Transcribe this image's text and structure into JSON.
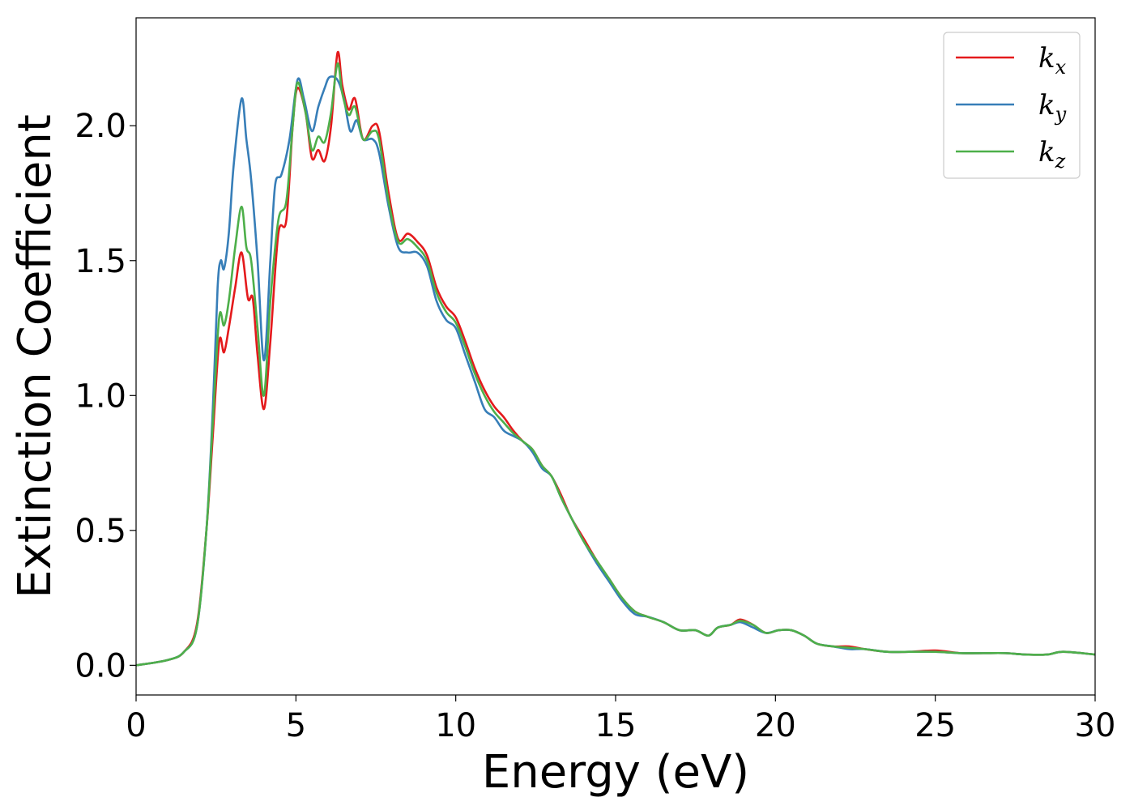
{
  "chart_data": {
    "type": "line",
    "xlabel": "Energy (eV)",
    "ylabel": "Extinction Coefficient",
    "xlim": [
      0,
      30
    ],
    "ylim": [
      -0.11,
      2.4
    ],
    "x_ticks": [
      "0",
      "5",
      "10",
      "15",
      "20",
      "25",
      "30"
    ],
    "y_ticks": [
      "0.0",
      "0.5",
      "1.0",
      "1.5",
      "2.0"
    ],
    "grid": false,
    "legend_position": "top-right",
    "colors": {
      "k_x": "#e41a1c",
      "k_y": "#377eb8",
      "k_z": "#4daf4a"
    },
    "series": [
      {
        "name": "k_x",
        "legend_base": "k",
        "legend_sub": "x",
        "color": "#e41a1c",
        "points": [
          [
            0,
            0.0
          ],
          [
            1.0,
            0.02
          ],
          [
            1.5,
            0.05
          ],
          [
            1.9,
            0.15
          ],
          [
            2.2,
            0.5
          ],
          [
            2.4,
            0.85
          ],
          [
            2.6,
            1.2
          ],
          [
            2.75,
            1.16
          ],
          [
            2.9,
            1.25
          ],
          [
            3.1,
            1.4
          ],
          [
            3.3,
            1.53
          ],
          [
            3.5,
            1.36
          ],
          [
            3.65,
            1.36
          ],
          [
            3.8,
            1.15
          ],
          [
            4.0,
            0.95
          ],
          [
            4.2,
            1.2
          ],
          [
            4.45,
            1.6
          ],
          [
            4.7,
            1.65
          ],
          [
            4.9,
            2.0
          ],
          [
            5.05,
            2.14
          ],
          [
            5.3,
            2.05
          ],
          [
            5.5,
            1.88
          ],
          [
            5.7,
            1.91
          ],
          [
            5.9,
            1.87
          ],
          [
            6.1,
            2.0
          ],
          [
            6.3,
            2.27
          ],
          [
            6.45,
            2.15
          ],
          [
            6.65,
            2.06
          ],
          [
            6.85,
            2.1
          ],
          [
            7.1,
            1.95
          ],
          [
            7.4,
            2.0
          ],
          [
            7.6,
            1.98
          ],
          [
            7.9,
            1.75
          ],
          [
            8.2,
            1.58
          ],
          [
            8.5,
            1.6
          ],
          [
            8.8,
            1.57
          ],
          [
            9.1,
            1.52
          ],
          [
            9.4,
            1.4
          ],
          [
            9.7,
            1.33
          ],
          [
            10.0,
            1.29
          ],
          [
            10.3,
            1.2
          ],
          [
            10.6,
            1.1
          ],
          [
            10.9,
            1.02
          ],
          [
            11.2,
            0.96
          ],
          [
            11.5,
            0.92
          ],
          [
            11.8,
            0.87
          ],
          [
            12.1,
            0.83
          ],
          [
            12.4,
            0.8
          ],
          [
            12.7,
            0.74
          ],
          [
            13.0,
            0.7
          ],
          [
            13.3,
            0.63
          ],
          [
            13.6,
            0.55
          ],
          [
            14.0,
            0.47
          ],
          [
            14.4,
            0.39
          ],
          [
            14.8,
            0.32
          ],
          [
            15.2,
            0.25
          ],
          [
            15.6,
            0.2
          ],
          [
            16.0,
            0.18
          ],
          [
            16.5,
            0.16
          ],
          [
            17.0,
            0.13
          ],
          [
            17.5,
            0.13
          ],
          [
            17.9,
            0.11
          ],
          [
            18.2,
            0.14
          ],
          [
            18.6,
            0.15
          ],
          [
            18.9,
            0.17
          ],
          [
            19.3,
            0.15
          ],
          [
            19.7,
            0.12
          ],
          [
            20.1,
            0.13
          ],
          [
            20.5,
            0.13
          ],
          [
            20.9,
            0.11
          ],
          [
            21.3,
            0.08
          ],
          [
            21.8,
            0.07
          ],
          [
            22.3,
            0.07
          ],
          [
            22.8,
            0.06
          ],
          [
            23.5,
            0.05
          ],
          [
            24.2,
            0.05
          ],
          [
            25.0,
            0.055
          ],
          [
            25.8,
            0.045
          ],
          [
            26.5,
            0.045
          ],
          [
            27.2,
            0.045
          ],
          [
            27.8,
            0.04
          ],
          [
            28.5,
            0.04
          ],
          [
            29.0,
            0.05
          ],
          [
            30.0,
            0.04
          ]
        ]
      },
      {
        "name": "k_y",
        "legend_base": "k",
        "legend_sub": "y",
        "color": "#377eb8",
        "points": [
          [
            0,
            0.0
          ],
          [
            1.0,
            0.02
          ],
          [
            1.5,
            0.05
          ],
          [
            1.9,
            0.14
          ],
          [
            2.2,
            0.5
          ],
          [
            2.4,
            0.95
          ],
          [
            2.55,
            1.4
          ],
          [
            2.65,
            1.5
          ],
          [
            2.75,
            1.47
          ],
          [
            2.9,
            1.6
          ],
          [
            3.05,
            1.85
          ],
          [
            3.3,
            2.1
          ],
          [
            3.45,
            1.95
          ],
          [
            3.6,
            1.8
          ],
          [
            3.8,
            1.5
          ],
          [
            4.0,
            1.13
          ],
          [
            4.2,
            1.5
          ],
          [
            4.35,
            1.78
          ],
          [
            4.55,
            1.82
          ],
          [
            4.8,
            1.95
          ],
          [
            5.05,
            2.17
          ],
          [
            5.25,
            2.1
          ],
          [
            5.5,
            1.98
          ],
          [
            5.7,
            2.07
          ],
          [
            5.9,
            2.14
          ],
          [
            6.05,
            2.18
          ],
          [
            6.3,
            2.17
          ],
          [
            6.5,
            2.1
          ],
          [
            6.7,
            1.98
          ],
          [
            6.9,
            2.02
          ],
          [
            7.1,
            1.95
          ],
          [
            7.4,
            1.95
          ],
          [
            7.6,
            1.9
          ],
          [
            7.9,
            1.7
          ],
          [
            8.2,
            1.55
          ],
          [
            8.5,
            1.53
          ],
          [
            8.8,
            1.53
          ],
          [
            9.1,
            1.48
          ],
          [
            9.4,
            1.35
          ],
          [
            9.7,
            1.28
          ],
          [
            10.0,
            1.25
          ],
          [
            10.3,
            1.15
          ],
          [
            10.6,
            1.05
          ],
          [
            10.9,
            0.95
          ],
          [
            11.2,
            0.92
          ],
          [
            11.5,
            0.87
          ],
          [
            11.8,
            0.85
          ],
          [
            12.1,
            0.83
          ],
          [
            12.4,
            0.79
          ],
          [
            12.7,
            0.73
          ],
          [
            13.0,
            0.7
          ],
          [
            13.3,
            0.62
          ],
          [
            13.6,
            0.55
          ],
          [
            14.0,
            0.46
          ],
          [
            14.4,
            0.38
          ],
          [
            14.8,
            0.31
          ],
          [
            15.2,
            0.24
          ],
          [
            15.6,
            0.19
          ],
          [
            16.0,
            0.18
          ],
          [
            16.5,
            0.16
          ],
          [
            17.0,
            0.13
          ],
          [
            17.5,
            0.13
          ],
          [
            17.9,
            0.11
          ],
          [
            18.2,
            0.14
          ],
          [
            18.6,
            0.15
          ],
          [
            18.9,
            0.16
          ],
          [
            19.3,
            0.14
          ],
          [
            19.7,
            0.12
          ],
          [
            20.1,
            0.13
          ],
          [
            20.5,
            0.13
          ],
          [
            20.9,
            0.11
          ],
          [
            21.3,
            0.08
          ],
          [
            21.8,
            0.07
          ],
          [
            22.3,
            0.06
          ],
          [
            22.8,
            0.06
          ],
          [
            23.5,
            0.05
          ],
          [
            24.2,
            0.05
          ],
          [
            25.0,
            0.05
          ],
          [
            25.8,
            0.045
          ],
          [
            26.5,
            0.045
          ],
          [
            27.2,
            0.045
          ],
          [
            27.8,
            0.04
          ],
          [
            28.5,
            0.04
          ],
          [
            29.0,
            0.05
          ],
          [
            30.0,
            0.04
          ]
        ]
      },
      {
        "name": "k_z",
        "legend_base": "k",
        "legend_sub": "z",
        "color": "#4daf4a",
        "points": [
          [
            0,
            0.0
          ],
          [
            1.0,
            0.02
          ],
          [
            1.5,
            0.05
          ],
          [
            1.9,
            0.14
          ],
          [
            2.2,
            0.5
          ],
          [
            2.4,
            0.9
          ],
          [
            2.6,
            1.29
          ],
          [
            2.75,
            1.26
          ],
          [
            2.9,
            1.35
          ],
          [
            3.1,
            1.55
          ],
          [
            3.3,
            1.7
          ],
          [
            3.45,
            1.55
          ],
          [
            3.6,
            1.5
          ],
          [
            3.8,
            1.25
          ],
          [
            4.0,
            1.0
          ],
          [
            4.2,
            1.35
          ],
          [
            4.45,
            1.65
          ],
          [
            4.7,
            1.72
          ],
          [
            4.9,
            2.0
          ],
          [
            5.05,
            2.16
          ],
          [
            5.3,
            2.05
          ],
          [
            5.5,
            1.91
          ],
          [
            5.7,
            1.96
          ],
          [
            5.9,
            1.94
          ],
          [
            6.1,
            2.05
          ],
          [
            6.3,
            2.23
          ],
          [
            6.45,
            2.12
          ],
          [
            6.65,
            2.04
          ],
          [
            6.85,
            2.07
          ],
          [
            7.1,
            1.95
          ],
          [
            7.4,
            1.98
          ],
          [
            7.6,
            1.95
          ],
          [
            7.9,
            1.72
          ],
          [
            8.2,
            1.57
          ],
          [
            8.5,
            1.58
          ],
          [
            8.8,
            1.55
          ],
          [
            9.1,
            1.5
          ],
          [
            9.4,
            1.38
          ],
          [
            9.7,
            1.31
          ],
          [
            10.0,
            1.27
          ],
          [
            10.3,
            1.18
          ],
          [
            10.6,
            1.08
          ],
          [
            10.9,
            1.0
          ],
          [
            11.2,
            0.94
          ],
          [
            11.5,
            0.9
          ],
          [
            11.8,
            0.86
          ],
          [
            12.1,
            0.83
          ],
          [
            12.4,
            0.8
          ],
          [
            12.7,
            0.74
          ],
          [
            13.0,
            0.7
          ],
          [
            13.3,
            0.62
          ],
          [
            13.6,
            0.55
          ],
          [
            14.0,
            0.46
          ],
          [
            14.4,
            0.39
          ],
          [
            14.8,
            0.32
          ],
          [
            15.2,
            0.25
          ],
          [
            15.6,
            0.2
          ],
          [
            16.0,
            0.18
          ],
          [
            16.5,
            0.16
          ],
          [
            17.0,
            0.13
          ],
          [
            17.5,
            0.13
          ],
          [
            17.9,
            0.11
          ],
          [
            18.2,
            0.14
          ],
          [
            18.6,
            0.15
          ],
          [
            18.9,
            0.165
          ],
          [
            19.3,
            0.15
          ],
          [
            19.7,
            0.12
          ],
          [
            20.1,
            0.13
          ],
          [
            20.5,
            0.13
          ],
          [
            20.9,
            0.11
          ],
          [
            21.3,
            0.08
          ],
          [
            21.8,
            0.07
          ],
          [
            22.3,
            0.065
          ],
          [
            22.8,
            0.06
          ],
          [
            23.5,
            0.05
          ],
          [
            24.2,
            0.05
          ],
          [
            25.0,
            0.05
          ],
          [
            25.8,
            0.045
          ],
          [
            26.5,
            0.045
          ],
          [
            27.2,
            0.045
          ],
          [
            27.8,
            0.04
          ],
          [
            28.5,
            0.04
          ],
          [
            29.0,
            0.05
          ],
          [
            30.0,
            0.04
          ]
        ]
      }
    ]
  }
}
